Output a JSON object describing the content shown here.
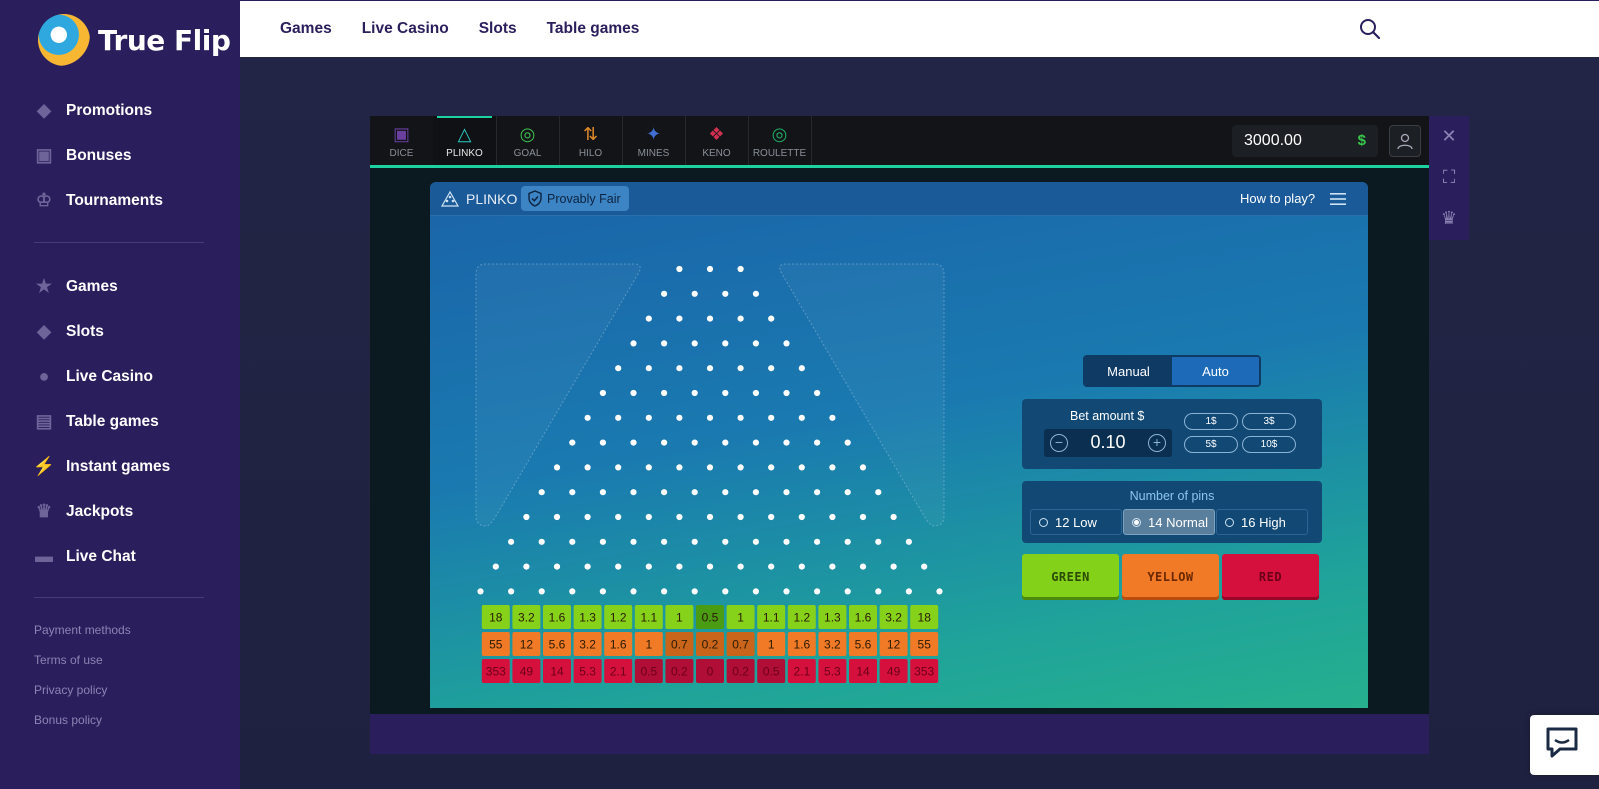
{
  "brand": {
    "name": "True Flip"
  },
  "sidebar": {
    "primary": [
      {
        "label": "Promotions",
        "icon": "tag-icon"
      },
      {
        "label": "Bonuses",
        "icon": "gift-icon"
      },
      {
        "label": "Tournaments",
        "icon": "trophy-icon"
      }
    ],
    "secondary": [
      {
        "label": "Games",
        "icon": "star-icon"
      },
      {
        "label": "Slots",
        "icon": "diamond-icon"
      },
      {
        "label": "Live Casino",
        "icon": "person-icon"
      },
      {
        "label": "Table games",
        "icon": "cards-icon"
      },
      {
        "label": "Instant games",
        "icon": "bolt-icon"
      },
      {
        "label": "Jackpots",
        "icon": "crown-icon"
      },
      {
        "label": "Live Chat",
        "icon": "chat-icon"
      }
    ],
    "footer_links": [
      "Payment methods",
      "Terms of use",
      "Privacy policy",
      "Bonus policy"
    ]
  },
  "topnav": {
    "items": [
      "Games",
      "Live Casino",
      "Slots",
      "Table games"
    ]
  },
  "game_tabs": [
    {
      "label": "DICE",
      "color": "#6b3fa0"
    },
    {
      "label": "PLINKO",
      "color": "#2ec7c0",
      "active": true
    },
    {
      "label": "GOAL",
      "color": "#3fbf4f"
    },
    {
      "label": "HILO",
      "color": "#e08a2a"
    },
    {
      "label": "MINES",
      "color": "#3f6fd0"
    },
    {
      "label": "KENO",
      "color": "#d0304f"
    },
    {
      "label": "ROULETTE",
      "color": "#1fae64"
    }
  ],
  "balance": {
    "amount": "3000.00",
    "currency": "$"
  },
  "plinko": {
    "title": "PLINKO",
    "provably_fair": "Provably Fair",
    "how_to_play": "How to play?",
    "mode": {
      "manual": "Manual",
      "auto": "Auto",
      "selected": "Manual"
    },
    "bet": {
      "label": "Bet amount $",
      "value": "0.10",
      "chips": [
        "1$",
        "3$",
        "5$",
        "10$"
      ]
    },
    "pins": {
      "label": "Number of pins",
      "options": [
        "12 Low",
        "14 Normal",
        "16 High"
      ],
      "selected": "14 Normal"
    },
    "buttons": {
      "green": "GREEN",
      "yellow": "YELLOW",
      "red": "RED"
    },
    "multipliers": {
      "green": [
        "18",
        "3.2",
        "1.6",
        "1.3",
        "1.2",
        "1.1",
        "1",
        "0.5",
        "1",
        "1.1",
        "1.2",
        "1.3",
        "1.6",
        "3.2",
        "18"
      ],
      "yellow": [
        "55",
        "12",
        "5.6",
        "3.2",
        "1.6",
        "1",
        "0.7",
        "0.2",
        "0.7",
        "1",
        "1.6",
        "3.2",
        "5.6",
        "12",
        "55"
      ],
      "red": [
        "353",
        "49",
        "14",
        "5.3",
        "2.1",
        "0.5",
        "0.2",
        "0",
        "0.2",
        "0.5",
        "2.1",
        "5.3",
        "14",
        "49",
        "353"
      ]
    }
  }
}
